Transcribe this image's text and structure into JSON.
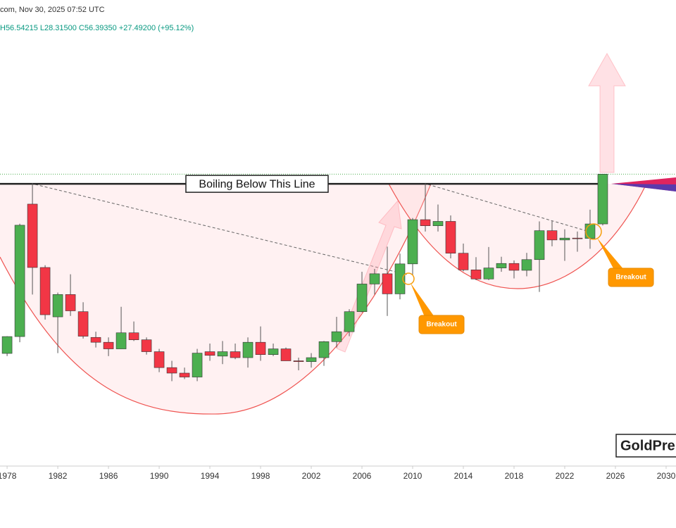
{
  "chart_data": {
    "type": "candlestick",
    "header": {
      "source": "com, Nov 30, 2025 07:52 UTC",
      "ohlc": "H56.54215 L28.31500 C56.39350 +27.49200 (+95.12%)"
    },
    "x": [
      1978,
      1979,
      1980,
      1981,
      1982,
      1983,
      1984,
      1985,
      1986,
      1987,
      1988,
      1989,
      1990,
      1991,
      1992,
      1993,
      1994,
      1995,
      1996,
      1997,
      1998,
      1999,
      2000,
      2001,
      2002,
      2003,
      2004,
      2005,
      2006,
      2007,
      2008,
      2009,
      2010,
      2011,
      2012,
      2013,
      2014,
      2015,
      2016,
      2017,
      2018,
      2019,
      2020,
      2021,
      2022,
      2023,
      2024,
      2025
    ],
    "open": [
      5.08,
      6.37,
      37.7,
      16.1,
      8.3,
      11.2,
      8.9,
      6.3,
      5.9,
      5.4,
      6.7,
      6.1,
      5.2,
      4.2,
      3.9,
      3.7,
      5.2,
      4.9,
      5.2,
      4.8,
      5.9,
      5.0,
      5.4,
      4.6,
      4.55,
      4.8,
      5.95,
      6.8,
      8.9,
      12.9,
      14.8,
      11.3,
      16.9,
      30.6,
      28.2,
      29.9,
      19.5,
      15.6,
      13.8,
      16.0,
      17.0,
      15.5,
      17.9,
      26.4,
      23.3,
      23.9,
      23.8,
      28.9
    ],
    "high": [
      6.4,
      29.0,
      50.0,
      16.6,
      11.5,
      14.7,
      10.1,
      6.8,
      6.3,
      9.5,
      7.8,
      6.3,
      5.4,
      4.6,
      4.2,
      5.4,
      5.8,
      6.0,
      5.8,
      6.3,
      7.3,
      5.8,
      5.5,
      4.8,
      5.1,
      6.0,
      8.3,
      9.2,
      15.2,
      15.8,
      21.3,
      19.4,
      31.3,
      49.8,
      37.5,
      32.4,
      22.2,
      18.5,
      21.2,
      18.6,
      17.7,
      19.6,
      29.9,
      30.1,
      26.9,
      26.1,
      35.0,
      56.54215
    ],
    "low": [
      4.9,
      5.9,
      11.2,
      8.0,
      5.1,
      8.4,
      6.2,
      5.5,
      4.9,
      5.4,
      6.0,
      5.0,
      3.95,
      3.5,
      3.6,
      3.5,
      4.6,
      4.4,
      4.7,
      4.2,
      4.6,
      4.9,
      4.6,
      4.05,
      4.2,
      4.3,
      5.5,
      6.4,
      8.8,
      11.2,
      8.4,
      10.5,
      14.6,
      26.1,
      26.1,
      18.2,
      15.3,
      13.6,
      13.6,
      15.2,
      13.9,
      14.3,
      11.6,
      21.4,
      17.6,
      19.9,
      20.7,
      28.315
    ],
    "close": [
      6.37,
      28.4,
      16.1,
      8.54,
      11.2,
      9.0,
      6.4,
      5.9,
      5.4,
      6.7,
      6.1,
      5.2,
      4.2,
      3.9,
      3.7,
      5.1,
      4.95,
      5.2,
      4.8,
      5.9,
      5.0,
      5.4,
      4.6,
      4.55,
      4.8,
      5.95,
      6.8,
      8.9,
      12.9,
      14.8,
      11.3,
      16.9,
      30.6,
      28.2,
      29.9,
      19.5,
      15.6,
      13.8,
      16.0,
      17.0,
      15.5,
      17.9,
      26.4,
      23.3,
      23.9,
      23.8,
      28.9,
      56.3935
    ],
    "up_color": "#4caf50",
    "down_color": "#f23645",
    "xlim": [
      1977.44,
      2030.78
    ],
    "xticks": [
      1978,
      1982,
      1986,
      1990,
      1994,
      1998,
      2002,
      2006,
      2010,
      2014,
      2018,
      2022,
      2026,
      2030
    ],
    "ylim": [
      1.12,
      584
    ],
    "log_scale": true,
    "resistance": {
      "label": "Boiling Below This Line",
      "value": 49.5
    },
    "annotations": [
      "Breakout",
      "Breakout"
    ],
    "watermark": "GoldPre"
  }
}
